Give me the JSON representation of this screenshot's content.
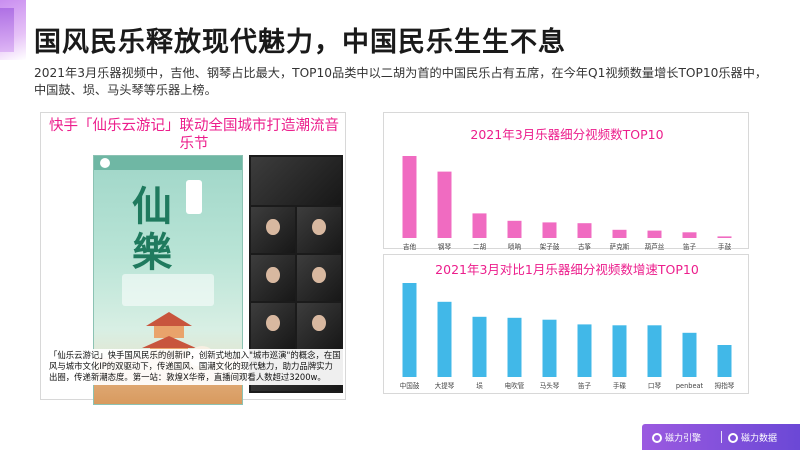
{
  "page": {
    "title": "国风民乐释放现代魅力，中国民乐生生不息",
    "subtitle": "2021年3月乐器视频中，吉他、钢琴占比最大，TOP10品类中以二胡为首的中国民乐占有五席，在今年Q1视频数量增长TOP10乐器中，中国鼓、埙、马头琴等乐器上榜。"
  },
  "left_panel": {
    "title": "快手「仙乐云游记」联动全国城市打造潮流音乐节",
    "poster_chars": [
      "仙",
      "樂"
    ],
    "caption": "「仙乐云游记」快手国风民乐的创新IP，创新式地加入\"城市巡演\"的概念，在国风与城市文化IP的双驱动下，传递国风、国潮文化的现代魅力，助力品牌实力出圈，传递新潮态度。第一站：敦煌X华帝，直播间观看人数超过3200w。"
  },
  "colors": {
    "accent": "#ec1e8c",
    "chart1_bar": "#f06bc1",
    "chart2_bar": "#41b8e8",
    "footer": "#8750dc"
  },
  "chart_data": [
    {
      "type": "bar",
      "title": "2021年3月乐器细分视频数TOP10",
      "categories": [
        "吉他",
        "钢琴",
        "二胡",
        "唢呐",
        "架子鼓",
        "古筝",
        "萨克斯",
        "葫芦丝",
        "笛子",
        "手鼓"
      ],
      "values": [
        100,
        81,
        30,
        21,
        19,
        18,
        10,
        9,
        7,
        2
      ],
      "ylim": [
        0,
        100
      ],
      "grid": false
    },
    {
      "type": "bar",
      "title": "2021年3月对比1月乐器细分视频数增速TOP10",
      "categories": [
        "中国鼓",
        "大提琴",
        "埙",
        "电吹管",
        "马头琴",
        "笛子",
        "手碟",
        "口琴",
        "penbeat",
        "拇指琴"
      ],
      "values": [
        100,
        80,
        64,
        63,
        61,
        56,
        55,
        55,
        47,
        34
      ],
      "ylim": [
        0,
        100
      ],
      "grid": false
    }
  ],
  "footer": {
    "brand_left": "磁力引擎",
    "brand_right": "磁力数据"
  }
}
